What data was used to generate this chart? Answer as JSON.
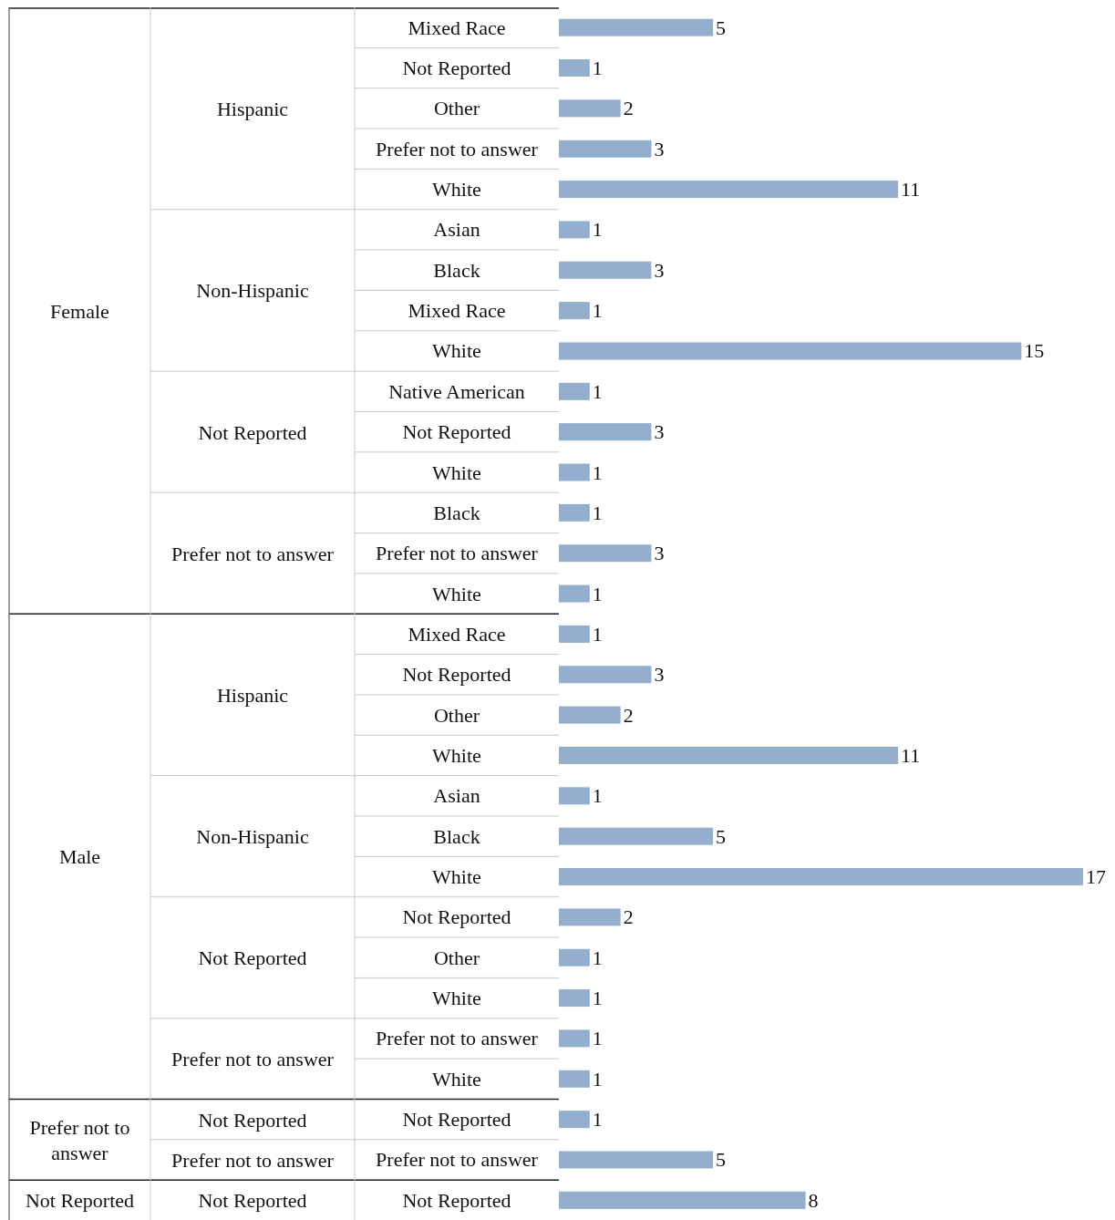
{
  "chart_data": {
    "type": "bar",
    "orientation": "horizontal",
    "data_labels": true,
    "color": "#93afcd",
    "categories": [
      "Mixed Race",
      "Not Reported",
      "Other",
      "Prefer not to answer",
      "White",
      "Asian",
      "Black",
      "Mixed Race",
      "White",
      "Native American",
      "Not Reported",
      "White",
      "Black",
      "Prefer not to answer",
      "White",
      "Mixed Race",
      "Not Reported",
      "Other",
      "White",
      "Asian",
      "Black",
      "White",
      "Not Reported",
      "Other",
      "White",
      "Prefer not to answer",
      "White",
      "Not Reported",
      "Prefer not to answer",
      "Not Reported"
    ],
    "values": [
      5,
      1,
      2,
      3,
      11,
      1,
      3,
      1,
      15,
      1,
      3,
      1,
      1,
      3,
      1,
      1,
      3,
      2,
      11,
      1,
      5,
      17,
      2,
      1,
      1,
      1,
      1,
      1,
      5,
      8
    ],
    "annotations": [
      "Female",
      "Male",
      "Prefer not to answer",
      "Not Reported",
      "Hispanic",
      "Non-Hispanic",
      "Not Reported",
      "Prefer not to answer",
      "Hispanic",
      "Non-Hispanic",
      "Not Reported",
      "Prefer not to answer",
      "Not Reported",
      "Prefer not to answer",
      "Not Reported"
    ]
  }
}
